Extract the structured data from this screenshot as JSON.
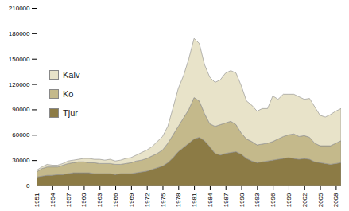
{
  "chart_data": {
    "type": "area",
    "stacked": true,
    "legend": "upper left",
    "x": [
      1951,
      1952,
      1953,
      1954,
      1955,
      1956,
      1957,
      1958,
      1959,
      1960,
      1961,
      1962,
      1963,
      1964,
      1965,
      1966,
      1967,
      1968,
      1969,
      1970,
      1971,
      1972,
      1973,
      1974,
      1975,
      1976,
      1977,
      1978,
      1979,
      1980,
      1981,
      1982,
      1983,
      1984,
      1985,
      1986,
      1987,
      1988,
      1989,
      1990,
      1991,
      1992,
      1993,
      1994,
      1995,
      1996,
      1997,
      1998,
      1999,
      2000,
      2001,
      2002,
      2003,
      2004,
      2005,
      2006,
      2007,
      2008,
      2009
    ],
    "series": [
      {
        "name": "Kalv",
        "color": "#e8e3c9",
        "values": [
          2000,
          2000,
          3000,
          2000,
          2000,
          2000,
          3000,
          3000,
          3000,
          4000,
          5000,
          4000,
          5000,
          4000,
          5000,
          4000,
          5000,
          6000,
          6000,
          7000,
          9000,
          10000,
          11000,
          14000,
          16000,
          20000,
          32000,
          45000,
          50000,
          60000,
          70000,
          68000,
          58000,
          55000,
          52000,
          53000,
          59000,
          60000,
          61000,
          56000,
          45000,
          43000,
          40000,
          42000,
          41000,
          54000,
          47000,
          50000,
          48000,
          47000,
          47000,
          43000,
          46000,
          43000,
          36000,
          34000,
          37000,
          38000,
          38000
        ]
      },
      {
        "name": "Ko",
        "color": "#c4b98b",
        "values": [
          6000,
          9000,
          10000,
          10000,
          9000,
          11000,
          12000,
          12000,
          13000,
          13000,
          12000,
          13000,
          12000,
          12000,
          12000,
          12000,
          11000,
          12000,
          13000,
          14000,
          14000,
          15000,
          16000,
          17000,
          19000,
          23000,
          27000,
          30000,
          35000,
          40000,
          49000,
          43000,
          32000,
          27000,
          32000,
          36000,
          36000,
          37000,
          32000,
          25000,
          23000,
          23000,
          21000,
          21000,
          21000,
          22000,
          24000,
          26000,
          27000,
          29000,
          27000,
          27000,
          26000,
          22000,
          20000,
          21000,
          22000,
          24000,
          26000
        ]
      },
      {
        "name": "Tjur",
        "color": "#8c7b45",
        "values": [
          10000,
          11000,
          12000,
          12000,
          13000,
          13000,
          14000,
          15000,
          15000,
          15000,
          15000,
          14000,
          14000,
          14000,
          14000,
          13000,
          14000,
          14000,
          14000,
          15000,
          16000,
          17000,
          19000,
          21000,
          23000,
          27000,
          33000,
          40000,
          45000,
          50000,
          55000,
          57000,
          53000,
          46000,
          38000,
          36000,
          38000,
          39000,
          40000,
          37000,
          32000,
          29000,
          27000,
          28000,
          29000,
          30000,
          31000,
          32000,
          33000,
          32000,
          31000,
          32000,
          31000,
          28000,
          27000,
          26000,
          25000,
          26000,
          27000
        ]
      }
    ],
    "xlim": [
      1951,
      2009
    ],
    "xticks": [
      1951,
      1954,
      1957,
      1960,
      1963,
      1966,
      1969,
      1972,
      1975,
      1978,
      1981,
      1984,
      1987,
      1990,
      1993,
      1996,
      1999,
      2002,
      2005,
      2008
    ],
    "ylim": [
      0,
      210000
    ],
    "yticks": [
      0,
      30000,
      60000,
      90000,
      120000,
      150000,
      180000,
      210000
    ],
    "grid": false
  }
}
